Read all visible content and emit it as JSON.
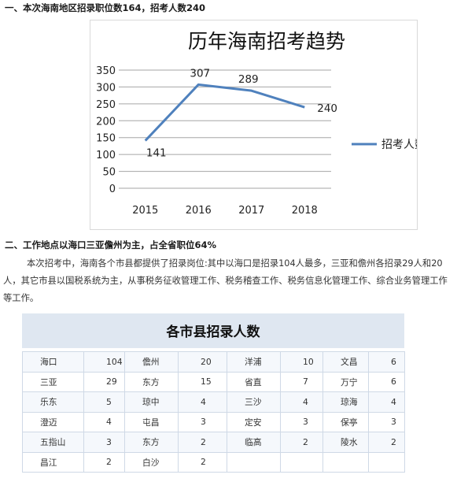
{
  "heading1": "一、本次海南地区招录职位数164，招考人数240",
  "chart_data": {
    "type": "line",
    "title": "历年海南招考趋势",
    "x": [
      "2015",
      "2016",
      "2017",
      "2018"
    ],
    "series": [
      {
        "name": "招考人数",
        "values": [
          141,
          307,
          289,
          240
        ]
      }
    ],
    "data_labels": [
      "141",
      "307",
      "289",
      "240"
    ],
    "ylim": [
      0,
      350
    ],
    "yticks": [
      "0",
      "50",
      "100",
      "150",
      "200",
      "250",
      "300",
      "350"
    ],
    "grid": true,
    "legend": "right",
    "line_color": "#4f81bd"
  },
  "heading2": "二、工作地点以海口三亚儋州为主，占全省职位64%",
  "paragraph": "本次招考中，海南各个市县都提供了招录岗位:其中以海口是招录104人最多，三亚和儋州各招录29人和20人，其它市县以国税系统为主，从事税务征收管理工作、税务稽查工作、税务信息化管理工作、综合业务管理工作等工作。",
  "table": {
    "title": "各市县招录人数",
    "rows": [
      [
        "海口",
        "104",
        "儋州",
        "20",
        "洋浦",
        "10",
        "文昌",
        "6"
      ],
      [
        "三亚",
        "29",
        "东方",
        "15",
        "省直",
        "7",
        "万宁",
        "6"
      ],
      [
        "乐东",
        "5",
        "琼中",
        "4",
        "三沙",
        "4",
        "琼海",
        "4"
      ],
      [
        "澄迈",
        "4",
        "屯昌",
        "3",
        "定安",
        "3",
        "保亭",
        "3"
      ],
      [
        "五指山",
        "3",
        "东方",
        "2",
        "临高",
        "2",
        "陵水",
        "2"
      ],
      [
        "昌江",
        "2",
        "白沙",
        "2",
        "",
        "",
        "",
        ""
      ]
    ]
  }
}
